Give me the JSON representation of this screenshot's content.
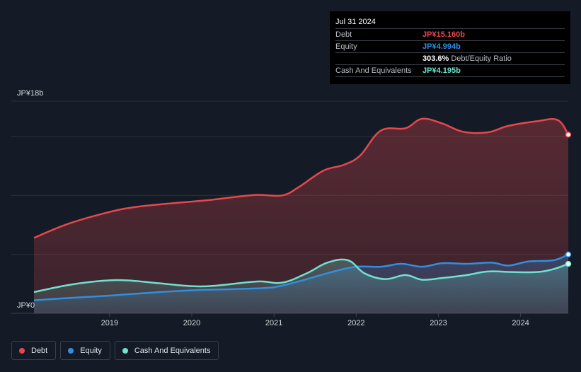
{
  "colors": {
    "debt": "#e5484d",
    "equity": "#2f8fe0",
    "cash": "#6ee2cf",
    "background": "#151b26"
  },
  "tooltip": {
    "date": "Jul 31 2024",
    "rows": [
      {
        "label": "Debt",
        "value": "JP¥15.160b",
        "color": "#e5484d",
        "extra": ""
      },
      {
        "label": "Equity",
        "value": "JP¥4.994b",
        "color": "#2f8fe0",
        "extra": ""
      },
      {
        "label": "",
        "value": "303.6%",
        "color": "#ffffff",
        "extra": "Debt/Equity Ratio"
      },
      {
        "label": "Cash And Equivalents",
        "value": "JP¥4.195b",
        "color": "#6ee2cf",
        "extra": ""
      }
    ]
  },
  "legend": [
    {
      "label": "Debt",
      "color": "#e5484d"
    },
    {
      "label": "Equity",
      "color": "#2f8fe0"
    },
    {
      "label": "Cash And Equivalents",
      "color": "#6ee2cf"
    }
  ],
  "chart_data": {
    "type": "area",
    "y_top_label": "JP¥18b",
    "y_bottom_label": "JP¥0",
    "ylim": [
      0,
      18
    ],
    "xlim": [
      2018.08,
      2024.58
    ],
    "x_ticks": [
      "2019",
      "2020",
      "2021",
      "2022",
      "2023",
      "2024"
    ],
    "x_tick_values": [
      2019,
      2020,
      2021,
      2022,
      2023,
      2024
    ],
    "grid": true,
    "legend_position": "bottom-left",
    "series": [
      {
        "name": "Debt",
        "color": "#e5484d",
        "x": [
          2018.08,
          2018.5,
          2019.0,
          2019.3,
          2019.7,
          2020.2,
          2020.5,
          2020.8,
          2021.1,
          2021.3,
          2021.6,
          2021.85,
          2022.05,
          2022.3,
          2022.6,
          2022.8,
          2023.05,
          2023.3,
          2023.6,
          2023.85,
          2024.2,
          2024.45,
          2024.58
        ],
        "y": [
          6.4,
          7.6,
          8.6,
          9.0,
          9.3,
          9.6,
          9.85,
          10.05,
          10.0,
          10.7,
          12.1,
          12.6,
          13.4,
          15.5,
          15.7,
          16.5,
          16.1,
          15.4,
          15.35,
          15.9,
          16.3,
          16.4,
          15.16
        ]
      },
      {
        "name": "Equity",
        "color": "#2f8fe0",
        "x": [
          2018.08,
          2018.5,
          2019.0,
          2019.5,
          2020.0,
          2020.5,
          2020.9,
          2021.1,
          2021.4,
          2021.7,
          2022.0,
          2022.3,
          2022.55,
          2022.8,
          2023.05,
          2023.35,
          2023.65,
          2023.85,
          2024.1,
          2024.4,
          2024.58
        ],
        "y": [
          1.1,
          1.3,
          1.5,
          1.75,
          1.95,
          2.05,
          2.15,
          2.35,
          2.9,
          3.5,
          3.95,
          3.95,
          4.2,
          3.95,
          4.25,
          4.2,
          4.3,
          4.05,
          4.4,
          4.5,
          4.994
        ]
      },
      {
        "name": "Cash And Equivalents",
        "color": "#6ee2cf",
        "x": [
          2018.08,
          2018.5,
          2018.9,
          2019.2,
          2019.6,
          2020.0,
          2020.3,
          2020.8,
          2021.1,
          2021.4,
          2021.65,
          2021.9,
          2022.1,
          2022.35,
          2022.6,
          2022.8,
          2023.05,
          2023.35,
          2023.6,
          2023.9,
          2024.2,
          2024.4,
          2024.58
        ],
        "y": [
          1.8,
          2.4,
          2.75,
          2.8,
          2.55,
          2.3,
          2.35,
          2.7,
          2.6,
          3.4,
          4.3,
          4.5,
          3.4,
          2.9,
          3.25,
          2.85,
          3.0,
          3.25,
          3.55,
          3.5,
          3.5,
          3.75,
          4.195
        ]
      }
    ]
  }
}
